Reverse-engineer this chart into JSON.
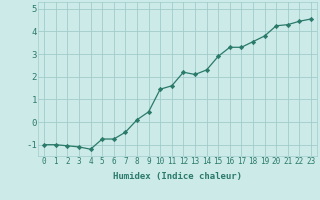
{
  "x": [
    0,
    1,
    2,
    3,
    4,
    5,
    6,
    7,
    8,
    9,
    10,
    11,
    12,
    13,
    14,
    15,
    16,
    17,
    18,
    19,
    20,
    21,
    22,
    23
  ],
  "y": [
    -1.0,
    -1.0,
    -1.05,
    -1.1,
    -1.2,
    -0.75,
    -0.75,
    -0.45,
    0.1,
    0.45,
    1.45,
    1.6,
    2.2,
    2.1,
    2.3,
    2.9,
    3.3,
    3.3,
    3.55,
    3.8,
    4.25,
    4.3,
    4.45,
    4.55
  ],
  "line_color": "#2a7a6a",
  "marker": "D",
  "marker_size": 2.2,
  "bg_color": "#cceae8",
  "grid_color": "#a0ccca",
  "xlabel": "Humidex (Indice chaleur)",
  "xlim": [
    -0.5,
    23.5
  ],
  "ylim": [
    -1.5,
    5.3
  ],
  "yticks": [
    -1,
    0,
    1,
    2,
    3,
    4,
    5
  ],
  "xticks": [
    0,
    1,
    2,
    3,
    4,
    5,
    6,
    7,
    8,
    9,
    10,
    11,
    12,
    13,
    14,
    15,
    16,
    17,
    18,
    19,
    20,
    21,
    22,
    23
  ],
  "tick_color": "#2a7a6a",
  "label_color": "#2a7a6a",
  "font_family": "monospace",
  "tick_fontsize": 5.5,
  "ytick_fontsize": 6.5,
  "xlabel_fontsize": 6.5
}
